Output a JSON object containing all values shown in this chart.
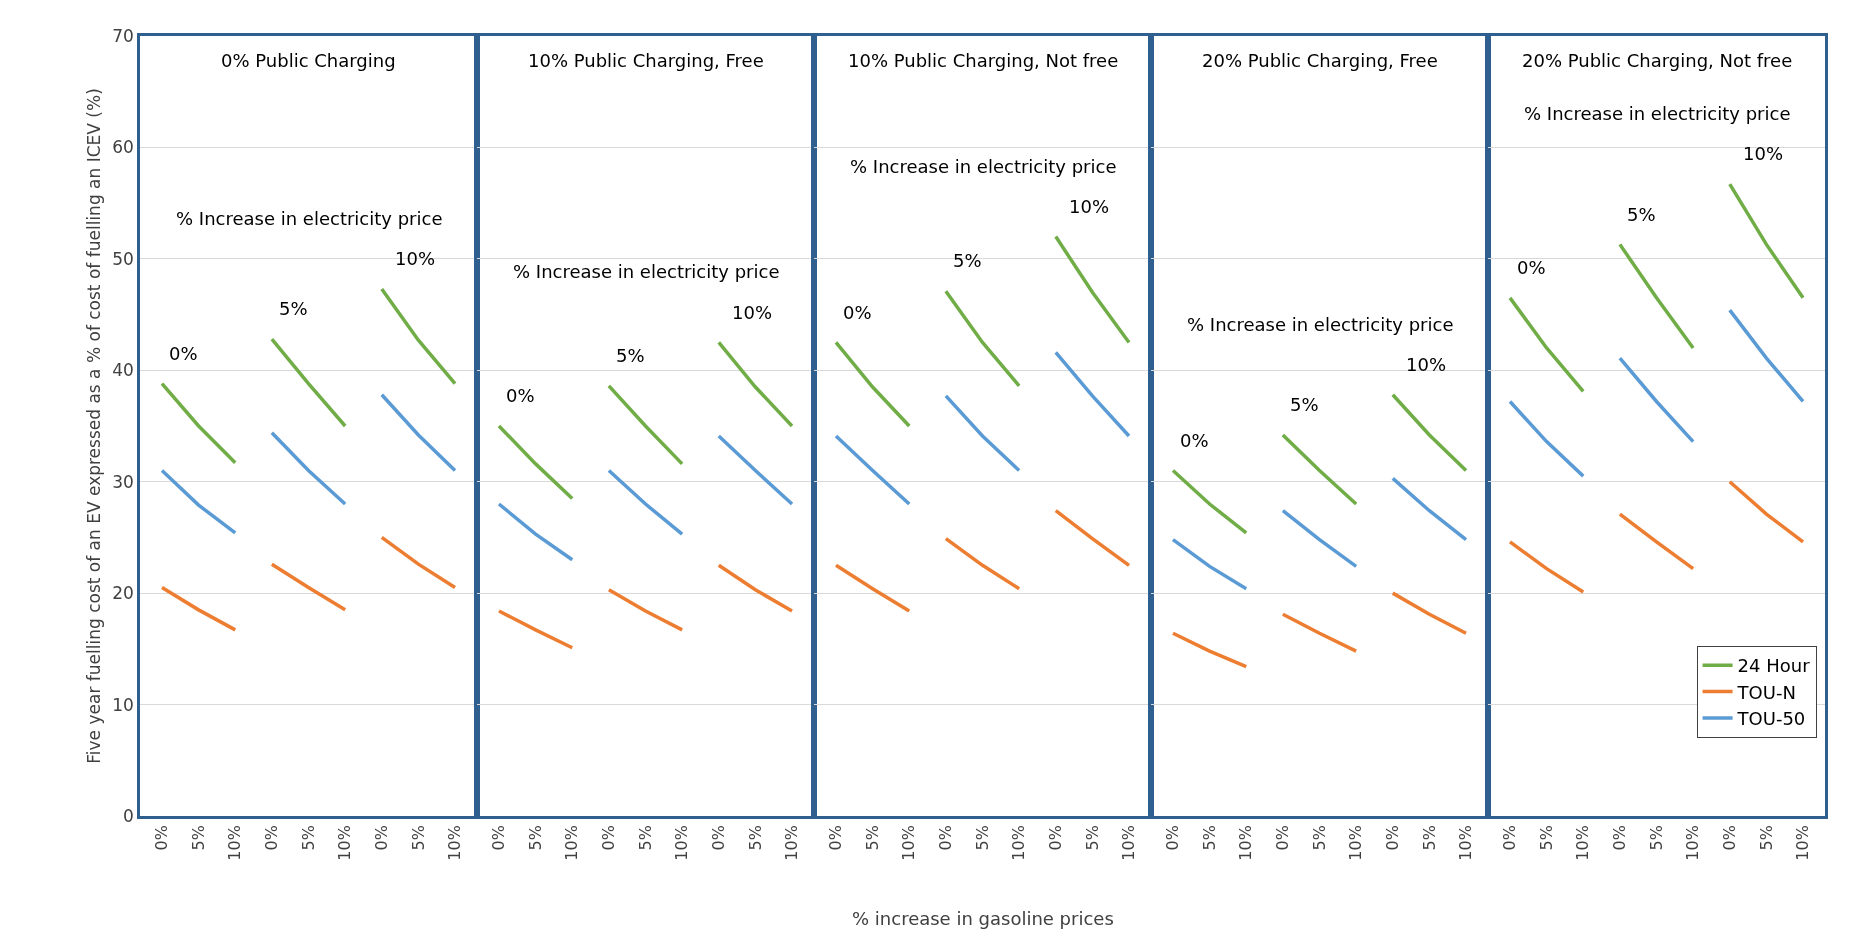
{
  "chart_data": [
    {
      "type": "line",
      "title": "0% Public Charging",
      "ylabel": "Five year fuelling cost of an EV expressed as a % of cost of fuelling an ICEV (%)",
      "categories": [
        "0%",
        "5%",
        "10%",
        "0%",
        "5%",
        "10%",
        "0%",
        "5%",
        "10%"
      ],
      "ylim": [
        0,
        70
      ],
      "yticks": [
        0,
        10,
        20,
        30,
        40,
        50,
        60,
        70
      ],
      "grid": "y",
      "marker": "none",
      "annotations": [
        "% Increase in electricity price",
        "0%",
        "5%",
        "10%"
      ],
      "series": [
        {
          "color": "#70ad47",
          "values": [
            38.8,
            35,
            31.7,
            null,
            null,
            null,
            null,
            null,
            null
          ]
        },
        {
          "color": "#ed7d31",
          "values": [
            20.5,
            18.5,
            16.7,
            null,
            null,
            null,
            null,
            null,
            null
          ]
        },
        {
          "color": "#5b9bd5",
          "values": [
            31,
            27.9,
            25.4,
            null,
            null,
            null,
            null,
            null,
            null
          ]
        },
        {
          "color": "#70ad47",
          "values": [
            null,
            null,
            null,
            42.8,
            38.8,
            35,
            null,
            null,
            null
          ]
        },
        {
          "color": "#ed7d31",
          "values": [
            null,
            null,
            null,
            22.6,
            20.5,
            18.5,
            null,
            null,
            null
          ]
        },
        {
          "color": "#5b9bd5",
          "values": [
            null,
            null,
            null,
            34.4,
            31,
            28,
            null,
            null,
            null
          ]
        },
        {
          "color": "#70ad47",
          "values": [
            null,
            null,
            null,
            null,
            null,
            null,
            47.3,
            42.7,
            38.8
          ]
        },
        {
          "color": "#ed7d31",
          "values": [
            null,
            null,
            null,
            null,
            null,
            null,
            25,
            22.6,
            20.5
          ]
        },
        {
          "color": "#5b9bd5",
          "values": [
            null,
            null,
            null,
            null,
            null,
            null,
            37.8,
            34.2,
            31
          ]
        }
      ]
    },
    {
      "type": "line",
      "title": "10% Public Charging, Free",
      "categories": [
        "0%",
        "5%",
        "10%",
        "0%",
        "5%",
        "10%",
        "0%",
        "5%",
        "10%"
      ],
      "ylim": [
        0,
        70
      ],
      "yticks": [
        0,
        10,
        20,
        30,
        40,
        50,
        60,
        70
      ],
      "tick_labels": "x",
      "grid": "y",
      "marker": "none",
      "annotations": [
        "% Increase in electricity price",
        "0%",
        "5%",
        "10%"
      ],
      "series": [
        {
          "color": "#70ad47",
          "values": [
            35,
            31.6,
            28.5,
            null,
            null,
            null,
            null,
            null,
            null
          ]
        },
        {
          "color": "#ed7d31",
          "values": [
            18.4,
            16.7,
            15.1,
            null,
            null,
            null,
            null,
            null,
            null
          ]
        },
        {
          "color": "#5b9bd5",
          "values": [
            28,
            25.3,
            23,
            null,
            null,
            null,
            null,
            null,
            null
          ]
        },
        {
          "color": "#70ad47",
          "values": [
            null,
            null,
            null,
            38.6,
            35,
            31.6,
            null,
            null,
            null
          ]
        },
        {
          "color": "#ed7d31",
          "values": [
            null,
            null,
            null,
            20.3,
            18.4,
            16.7,
            null,
            null,
            null
          ]
        },
        {
          "color": "#5b9bd5",
          "values": [
            null,
            null,
            null,
            31,
            28,
            25.3,
            null,
            null,
            null
          ]
        },
        {
          "color": "#70ad47",
          "values": [
            null,
            null,
            null,
            null,
            null,
            null,
            42.5,
            38.5,
            35
          ]
        },
        {
          "color": "#ed7d31",
          "values": [
            null,
            null,
            null,
            null,
            null,
            null,
            22.5,
            20.3,
            18.4
          ]
        },
        {
          "color": "#5b9bd5",
          "values": [
            null,
            null,
            null,
            null,
            null,
            null,
            34.1,
            31,
            28
          ]
        }
      ]
    },
    {
      "type": "line",
      "title": "10% Public Charging, Not free",
      "xlabel": "% increase in gasoline prices",
      "categories": [
        "0%",
        "5%",
        "10%",
        "0%",
        "5%",
        "10%",
        "0%",
        "5%",
        "10%"
      ],
      "ylim": [
        0,
        70
      ],
      "yticks": [
        0,
        10,
        20,
        30,
        40,
        50,
        60,
        70
      ],
      "tick_labels": "x",
      "grid": "y",
      "marker": "none",
      "annotations": [
        "% Increase in electricity price",
        "0%",
        "5%",
        "10%"
      ],
      "series": [
        {
          "color": "#70ad47",
          "values": [
            42.5,
            38.5,
            35,
            null,
            null,
            null,
            null,
            null,
            null
          ]
        },
        {
          "color": "#ed7d31",
          "values": [
            22.5,
            20.4,
            18.4,
            null,
            null,
            null,
            null,
            null,
            null
          ]
        },
        {
          "color": "#5b9bd5",
          "values": [
            34.1,
            31,
            28,
            null,
            null,
            null,
            null,
            null,
            null
          ]
        },
        {
          "color": "#70ad47",
          "values": [
            null,
            null,
            null,
            47.1,
            42.5,
            38.6,
            null,
            null,
            null
          ]
        },
        {
          "color": "#ed7d31",
          "values": [
            null,
            null,
            null,
            24.9,
            22.5,
            20.4,
            null,
            null,
            null
          ]
        },
        {
          "color": "#5b9bd5",
          "values": [
            null,
            null,
            null,
            37.7,
            34.1,
            31,
            null,
            null,
            null
          ]
        },
        {
          "color": "#70ad47",
          "values": [
            null,
            null,
            null,
            null,
            null,
            null,
            52,
            47,
            42.5
          ]
        },
        {
          "color": "#ed7d31",
          "values": [
            null,
            null,
            null,
            null,
            null,
            null,
            27.4,
            24.9,
            22.5
          ]
        },
        {
          "color": "#5b9bd5",
          "values": [
            null,
            null,
            null,
            null,
            null,
            null,
            41.6,
            37.7,
            34.1
          ]
        }
      ]
    },
    {
      "type": "line",
      "title": "20% Public Charging, Free",
      "categories": [
        "0%",
        "5%",
        "10%",
        "0%",
        "5%",
        "10%",
        "0%",
        "5%",
        "10%"
      ],
      "ylim": [
        0,
        70
      ],
      "yticks": [
        0,
        10,
        20,
        30,
        40,
        50,
        60,
        70
      ],
      "tick_labels": "x",
      "grid": "y",
      "marker": "none",
      "annotations": [
        "% Increase in electricity price",
        "0%",
        "5%",
        "10%"
      ],
      "series": [
        {
          "color": "#70ad47",
          "values": [
            31,
            28,
            25.4,
            null,
            null,
            null,
            null,
            null,
            null
          ]
        },
        {
          "color": "#ed7d31",
          "values": [
            16.4,
            14.8,
            13.4,
            null,
            null,
            null,
            null,
            null,
            null
          ]
        },
        {
          "color": "#5b9bd5",
          "values": [
            24.8,
            22.4,
            20.4,
            null,
            null,
            null,
            null,
            null,
            null
          ]
        },
        {
          "color": "#70ad47",
          "values": [
            null,
            null,
            null,
            34.2,
            31,
            28,
            null,
            null,
            null
          ]
        },
        {
          "color": "#ed7d31",
          "values": [
            null,
            null,
            null,
            18.1,
            16.4,
            14.8,
            null,
            null,
            null
          ]
        },
        {
          "color": "#5b9bd5",
          "values": [
            null,
            null,
            null,
            27.4,
            24.8,
            22.4,
            null,
            null,
            null
          ]
        },
        {
          "color": "#70ad47",
          "values": [
            null,
            null,
            null,
            null,
            null,
            null,
            37.8,
            34.2,
            31
          ]
        },
        {
          "color": "#ed7d31",
          "values": [
            null,
            null,
            null,
            null,
            null,
            null,
            20,
            18.1,
            16.4
          ]
        },
        {
          "color": "#5b9bd5",
          "values": [
            null,
            null,
            null,
            null,
            null,
            null,
            30.3,
            27.4,
            24.8
          ]
        }
      ]
    },
    {
      "type": "line",
      "title": "20% Public Charging, Not free",
      "categories": [
        "0%",
        "5%",
        "10%",
        "0%",
        "5%",
        "10%",
        "0%",
        "5%",
        "10%"
      ],
      "ylim": [
        0,
        70
      ],
      "yticks": [
        0,
        10,
        20,
        30,
        40,
        50,
        60,
        70
      ],
      "tick_labels": "x",
      "grid": "y",
      "marker": "none",
      "legend": "bottom right",
      "annotations": [
        "% Increase in electricity price",
        "0%",
        "5%",
        "10%"
      ],
      "series": [
        {
          "name": "24 Hour",
          "color": "#70ad47",
          "values": [
            46.5,
            42,
            38.1,
            null,
            null,
            null,
            null,
            null,
            null
          ]
        },
        {
          "name": "TOU-N",
          "color": "#ed7d31",
          "values": [
            24.6,
            22.2,
            20.1,
            null,
            null,
            null,
            null,
            null,
            null
          ]
        },
        {
          "name": "TOU-50",
          "color": "#5b9bd5",
          "values": [
            37.2,
            33.6,
            30.5,
            null,
            null,
            null,
            null,
            null,
            null
          ]
        },
        {
          "color": "#70ad47",
          "values": [
            null,
            null,
            null,
            51.3,
            46.5,
            42,
            null,
            null,
            null
          ]
        },
        {
          "color": "#ed7d31",
          "values": [
            null,
            null,
            null,
            27.1,
            24.6,
            22.2,
            null,
            null,
            null
          ]
        },
        {
          "color": "#5b9bd5",
          "values": [
            null,
            null,
            null,
            41.1,
            37.2,
            33.6,
            null,
            null,
            null
          ]
        },
        {
          "color": "#70ad47",
          "values": [
            null,
            null,
            null,
            null,
            null,
            null,
            56.7,
            51.3,
            46.5
          ]
        },
        {
          "color": "#ed7d31",
          "values": [
            null,
            null,
            null,
            null,
            null,
            null,
            30,
            27.1,
            24.6
          ]
        },
        {
          "color": "#5b9bd5",
          "values": [
            null,
            null,
            null,
            null,
            null,
            null,
            45.4,
            41.1,
            37.2
          ]
        }
      ]
    }
  ]
}
